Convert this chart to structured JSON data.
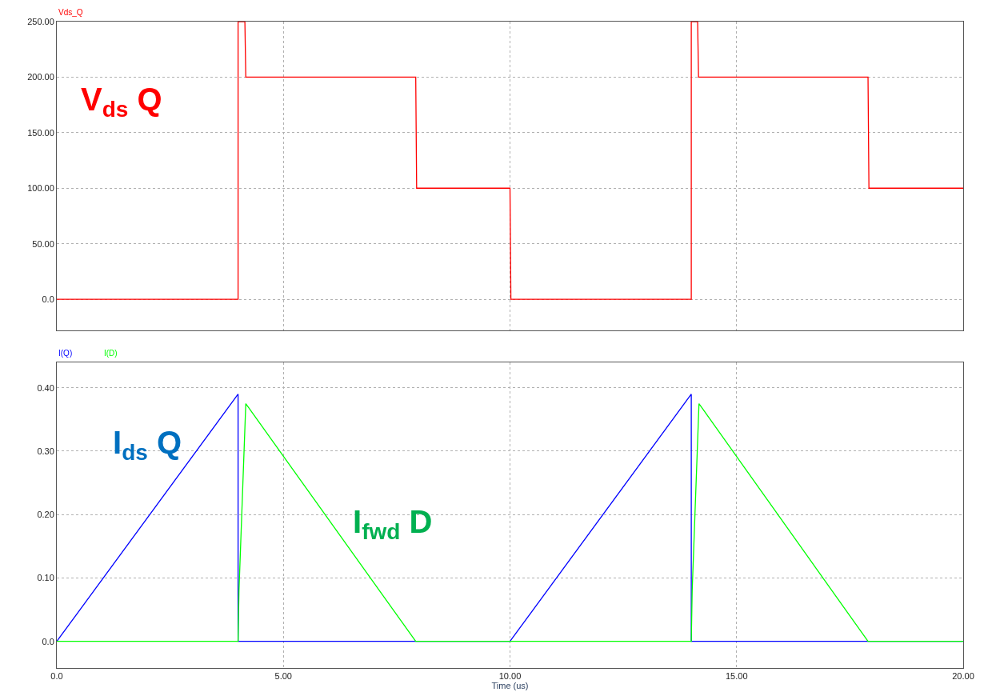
{
  "chart_data": [
    {
      "type": "line",
      "xlim": [
        0,
        20
      ],
      "xticks": [
        {
          "value": 0,
          "label": null
        },
        {
          "value": 5,
          "label": null
        },
        {
          "value": 10,
          "label": null
        },
        {
          "value": 15,
          "label": null
        },
        {
          "value": 20,
          "label": null
        }
      ],
      "ylim": [
        -28,
        250
      ],
      "yticks": [
        {
          "value": 0,
          "label": "0.0"
        },
        {
          "value": 50,
          "label": "50.00"
        },
        {
          "value": 100,
          "label": "100.00"
        },
        {
          "value": 150,
          "label": "150.00"
        },
        {
          "value": 200,
          "label": "200.00"
        },
        {
          "value": 250,
          "label": "250.00"
        }
      ],
      "grid": true,
      "tick_labels": "y",
      "marker": "none",
      "line_style": "solid",
      "annotations": [
        "V$_{ds}$ Q"
      ],
      "series": [
        {
          "name": "Vds_Q",
          "color": "#ff0000",
          "x": [
            0,
            4.0,
            4.0,
            4.15,
            4.17,
            7.92,
            7.94,
            10.0,
            10.02,
            14.0,
            14.0,
            14.14,
            14.16,
            17.9,
            17.92,
            20
          ],
          "values": [
            0,
            0,
            250,
            250,
            200,
            200,
            100,
            100,
            0,
            0,
            250,
            250,
            200,
            200,
            100,
            100
          ]
        }
      ]
    },
    {
      "type": "line",
      "xlim": [
        0,
        20
      ],
      "xticks": [
        {
          "value": 0,
          "label": "0.0"
        },
        {
          "value": 5,
          "label": "5.00"
        },
        {
          "value": 10,
          "label": "10.00"
        },
        {
          "value": 15,
          "label": "15.00"
        },
        {
          "value": 20,
          "label": "20.00"
        }
      ],
      "ylim": [
        -0.042,
        0.44
      ],
      "yticks": [
        {
          "value": 0,
          "label": "0.0"
        },
        {
          "value": 0.1,
          "label": "0.10"
        },
        {
          "value": 0.2,
          "label": "0.20"
        },
        {
          "value": 0.3,
          "label": "0.30"
        },
        {
          "value": 0.4,
          "label": "0.40"
        }
      ],
      "grid": true,
      "xlabel": "Time (us)",
      "marker": "none",
      "line_style": "solid",
      "annotations": [
        "I$_{ds}$ Q",
        "I$_{fwd}$ D"
      ],
      "series": [
        {
          "name": "I(Q)",
          "color": "#0000ff",
          "x": [
            0,
            4.0,
            4.0,
            10.0,
            14.0,
            14.0,
            20
          ],
          "values": [
            0,
            0.39,
            0,
            0,
            0.39,
            0,
            0
          ]
        },
        {
          "name": "I(D)",
          "color": "#00ff00",
          "x": [
            0,
            4.0,
            4.02,
            4.17,
            7.92,
            14.0,
            14.02,
            14.17,
            17.9,
            20
          ],
          "values": [
            0,
            0,
            0.08,
            0.375,
            0,
            0,
            0.08,
            0.375,
            0,
            0
          ]
        }
      ]
    }
  ]
}
